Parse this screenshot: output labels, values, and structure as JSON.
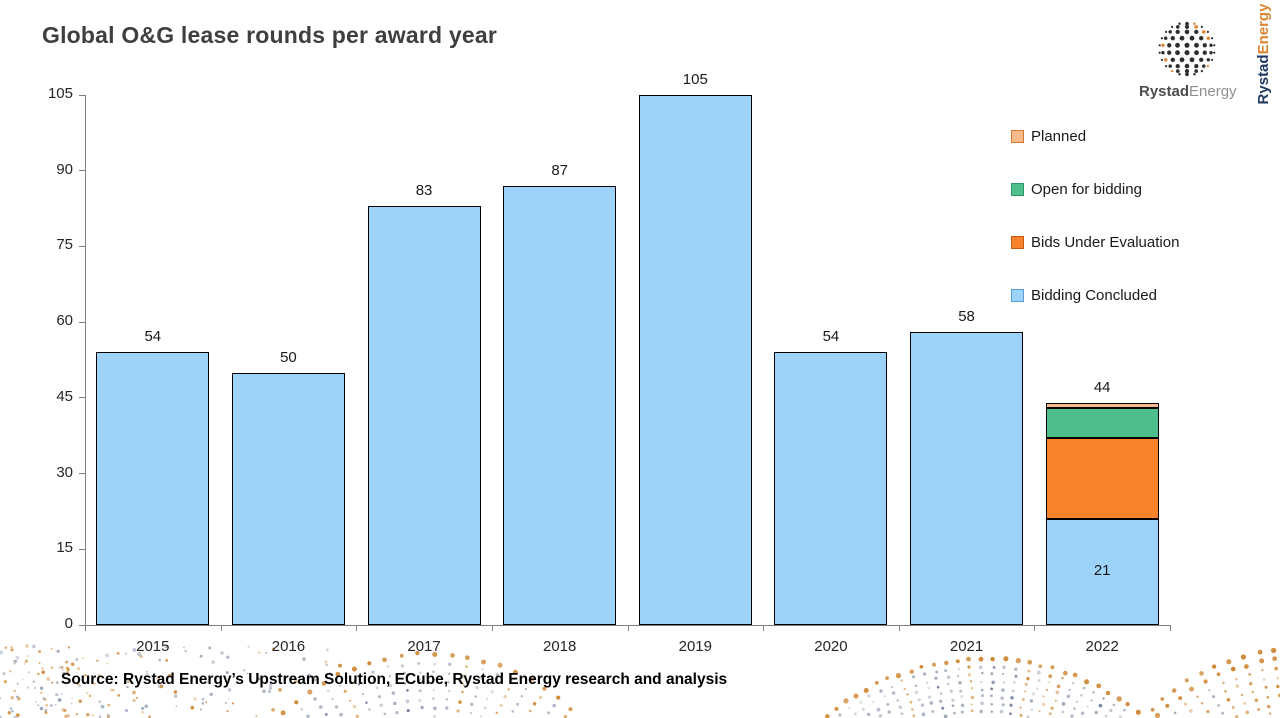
{
  "title": "Global O&G lease rounds per award year",
  "source_note": "Source: Rystad Energy’s Upstream Solution,  ECube, Rystad Energy research and analysis",
  "brand": {
    "wordmark_bold": "Rystad",
    "wordmark_light": "Energy",
    "vertical_bold": "Rystad",
    "vertical_accent": "Energy",
    "globe_icon": "dotted-globe-icon"
  },
  "colors": {
    "title_text": "#3F3F3F",
    "axis_line": "#7F7F7F",
    "label_text": "#1A1A1A",
    "bar_border": "#000000",
    "bidding_concluded": "#9DD3F9",
    "bids_under_evaluation": "#F9822D",
    "open_for_bidding": "#4FBE8D",
    "planned": "#FBBA8C",
    "brand_navy": "#203A64",
    "brand_orange": "#DF8633",
    "dots_orange": "#CE8732",
    "dots_gray": "#96A2B5",
    "dots_navy": "#57678A"
  },
  "chart_data": {
    "type": "bar",
    "stacked": true,
    "title": "Global O&G lease rounds per award year",
    "xlabel": "",
    "ylabel": "",
    "categories": [
      "2015",
      "2016",
      "2017",
      "2018",
      "2019",
      "2020",
      "2021",
      "2022"
    ],
    "series": [
      {
        "name": "Bidding Concluded",
        "color": "#9DD3F9",
        "values": [
          54,
          50,
          83,
          87,
          105,
          54,
          58,
          21
        ]
      },
      {
        "name": "Bids Under Evaluation",
        "color": "#F9822D",
        "values": [
          0,
          0,
          0,
          0,
          0,
          0,
          0,
          16
        ]
      },
      {
        "name": "Open for bidding",
        "color": "#4FBE8D",
        "values": [
          0,
          0,
          0,
          0,
          0,
          0,
          0,
          6
        ]
      },
      {
        "name": "Planned",
        "color": "#FBBA8C",
        "values": [
          0,
          0,
          0,
          0,
          0,
          0,
          0,
          1
        ]
      }
    ],
    "totals": [
      54,
      50,
      83,
      87,
      105,
      54,
      58,
      44
    ],
    "inside_labels": [
      {
        "category": "2022",
        "series": "Bidding Concluded",
        "text": "21"
      }
    ],
    "ylim": [
      0,
      105
    ],
    "yticks": [
      0,
      15,
      30,
      45,
      60,
      75,
      90,
      105
    ],
    "grid": false,
    "legend_position": "right-top",
    "legend": [
      {
        "label": "Planned",
        "fill": "#FBBA8C",
        "border": "#D9772E"
      },
      {
        "label": "Open for bidding",
        "fill": "#4FBE8D",
        "border": "#2F9768"
      },
      {
        "label": "Bids Under Evaluation",
        "fill": "#F9822D",
        "border": "#C55A11"
      },
      {
        "label": "Bidding Concluded",
        "fill": "#9DD3F9",
        "border": "#5B9BD5"
      }
    ]
  }
}
